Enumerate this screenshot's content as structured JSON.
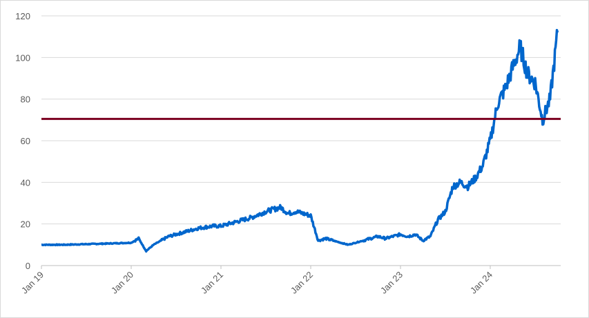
{
  "chart_data": {
    "type": "line",
    "title": "",
    "xlabel": "",
    "ylabel": "",
    "ylim": [
      0,
      120
    ],
    "yticks": [
      0,
      20,
      40,
      60,
      80,
      100,
      120
    ],
    "xticks": [
      "Jan 19",
      "Jan 20",
      "Jan 21",
      "Jan 22",
      "Jan 23",
      "Jan 24"
    ],
    "grid": true,
    "legend": "none",
    "series": [
      {
        "color": "#0066cc",
        "x": [
          "2019-01",
          "2019-04",
          "2019-07",
          "2019-10",
          "2020-01",
          "2020-02",
          "2020-03",
          "2020-04",
          "2020-05",
          "2020-06",
          "2020-08",
          "2020-10",
          "2020-12",
          "2021-01",
          "2021-03",
          "2021-05",
          "2021-07",
          "2021-09",
          "2021-10",
          "2021-11",
          "2021-12",
          "2022-01",
          "2022-02",
          "2022-03",
          "2022-04",
          "2022-05",
          "2022-06",
          "2022-07",
          "2022-08",
          "2022-09",
          "2022-10",
          "2022-11",
          "2022-12",
          "2023-01",
          "2023-02",
          "2023-03",
          "2023-04",
          "2023-05",
          "2023-06",
          "2023-07",
          "2023-08",
          "2023-09",
          "2023-10",
          "2023-11",
          "2023-12",
          "2024-01",
          "2024-02",
          "2024-03",
          "2024-04",
          "2024-05",
          "2024-06",
          "2024-07",
          "2024-08",
          "2024-09",
          "2024-10"
        ],
        "values": [
          10,
          10,
          10.3,
          10.6,
          11,
          13,
          7,
          10,
          12,
          14,
          16,
          18,
          19,
          19,
          21,
          23,
          26,
          28,
          25,
          26,
          25,
          24,
          12,
          13,
          12,
          11,
          10,
          11,
          12,
          13,
          14,
          13,
          14,
          15,
          14,
          15,
          12,
          14,
          22,
          26,
          38,
          40,
          38,
          42,
          48,
          60,
          78,
          85,
          95,
          105,
          92,
          88,
          70,
          80,
          112
        ]
      }
    ],
    "reference_line": {
      "value": 70.5,
      "color": "#7b0020"
    }
  }
}
